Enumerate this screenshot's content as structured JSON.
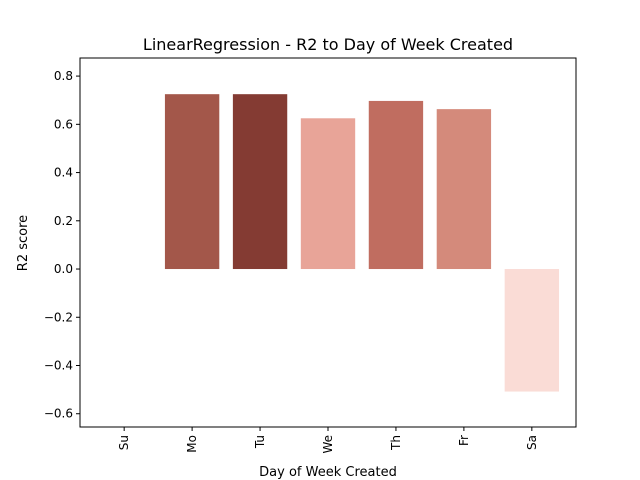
{
  "chart_data": {
    "type": "bar",
    "title": "LinearRegression - R2 to Day of Week Created",
    "xlabel": "Day of Week Created",
    "ylabel": "R2 score",
    "categories": [
      "Su",
      "Mo",
      "Tu",
      "We",
      "Th",
      "Fr",
      "Sa"
    ],
    "values": [
      0.0,
      0.725,
      0.725,
      0.625,
      0.697,
      0.663,
      -0.508
    ],
    "colors": [
      "#ffffff",
      "#a3574a",
      "#843b33",
      "#e8a498",
      "#c06d60",
      "#d48a7b",
      "#fadcd6"
    ],
    "ylim": [
      -0.655,
      0.875
    ],
    "yticks": [
      -0.6,
      -0.4,
      -0.2,
      0.0,
      0.2,
      0.4,
      0.6,
      0.8
    ],
    "ytick_labels": [
      "−0.6",
      "−0.4",
      "−0.2",
      "0.0",
      "0.2",
      "0.4",
      "0.6",
      "0.8"
    ],
    "grid": false,
    "legend": "none"
  }
}
